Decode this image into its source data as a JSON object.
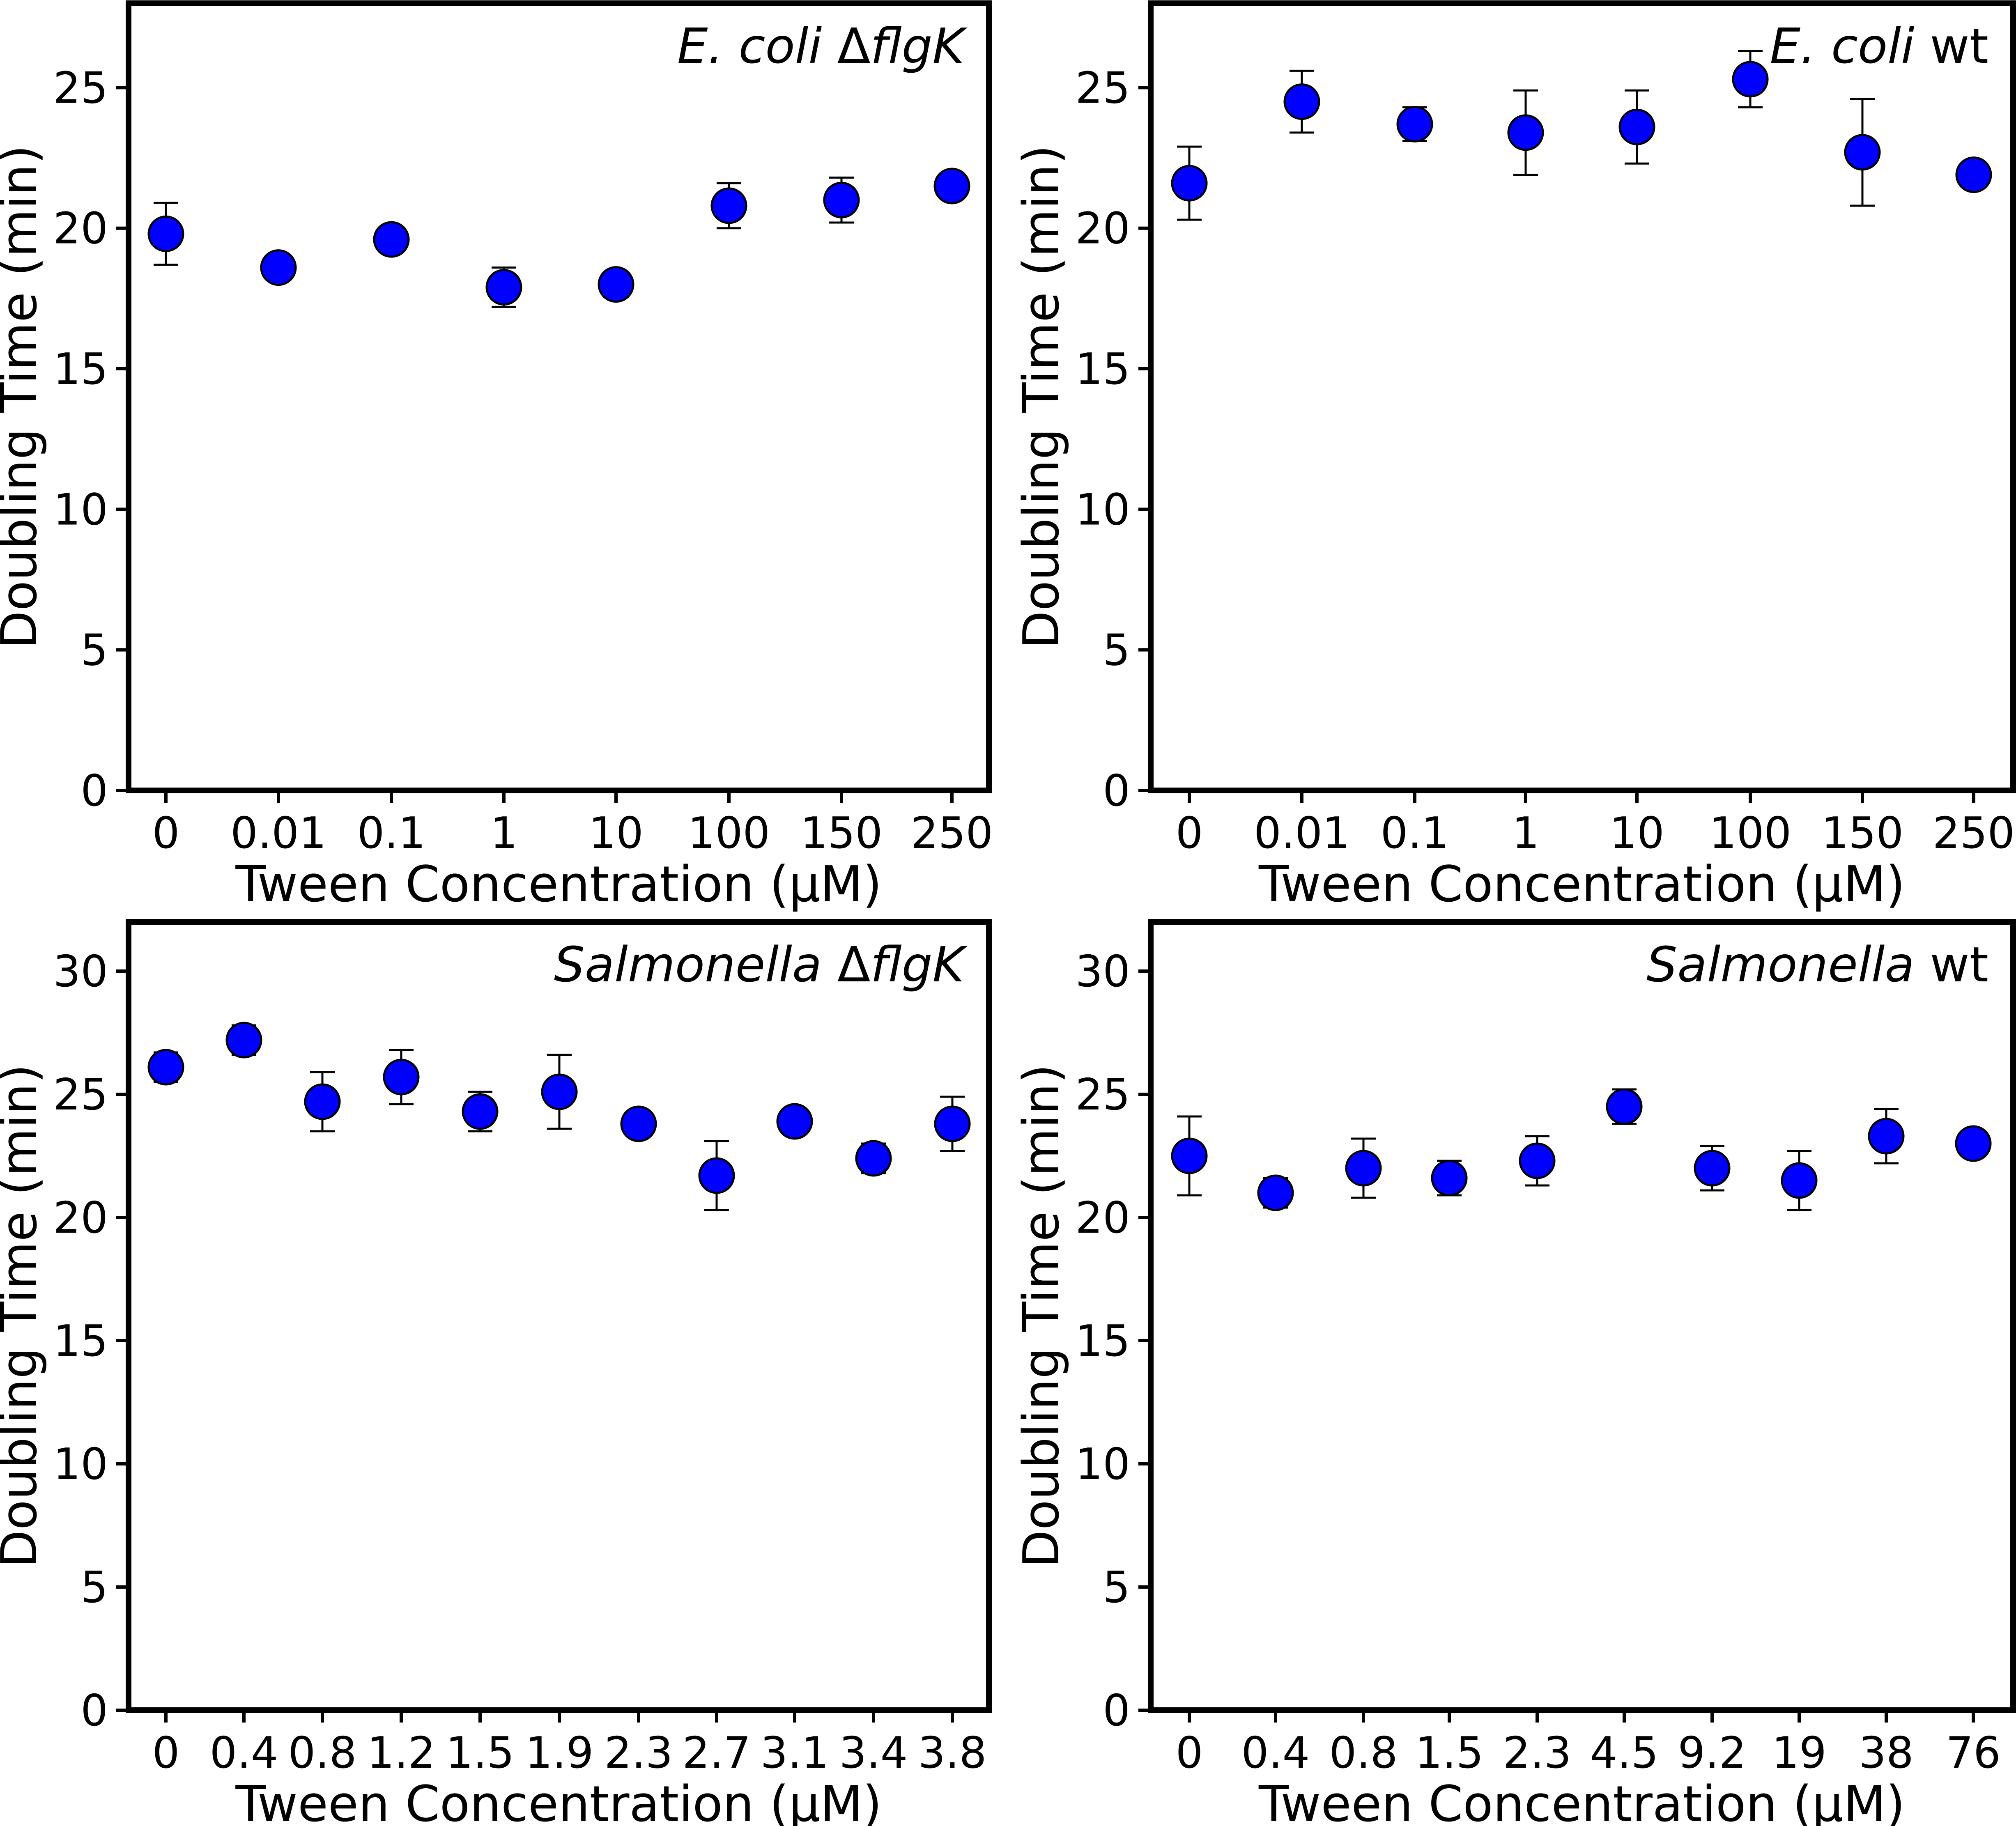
{
  "chart_data": [
    {
      "type": "scatter",
      "title_parts": [
        {
          "text": "E. coli ",
          "italic": true
        },
        {
          "text": "Δ",
          "italic": false
        },
        {
          "text": "flgK",
          "italic": true
        }
      ],
      "xlabel": "Tween Concentration (μM)",
      "ylabel": "Doubling Time (min)",
      "categories": [
        "0",
        "0.01",
        "0.1",
        "1",
        "10",
        "100",
        "150",
        "250"
      ],
      "values": [
        19.8,
        18.6,
        19.6,
        17.9,
        18.0,
        20.8,
        21.0,
        21.5
      ],
      "errors": [
        1.1,
        0.0,
        0.0,
        0.7,
        0.0,
        0.8,
        0.8,
        0.0
      ],
      "ylim": [
        0,
        28
      ],
      "yticks": [
        0,
        5,
        10,
        15,
        20,
        25
      ],
      "marker_color": "#0000ff",
      "grid": false,
      "legend": "none"
    },
    {
      "type": "scatter",
      "title_parts": [
        {
          "text": "E. coli",
          "italic": true
        },
        {
          "text": " wt",
          "italic": false
        }
      ],
      "xlabel": "Tween Concentration (μM)",
      "ylabel": "Doubling Time (min)",
      "categories": [
        "0",
        "0.01",
        "0.1",
        "1",
        "10",
        "100",
        "150",
        "250"
      ],
      "values": [
        21.6,
        24.5,
        23.7,
        23.4,
        23.6,
        25.3,
        22.7,
        21.9
      ],
      "errors": [
        1.3,
        1.1,
        0.6,
        1.5,
        1.3,
        1.0,
        1.9,
        0.0
      ],
      "ylim": [
        0,
        28
      ],
      "yticks": [
        0,
        5,
        10,
        15,
        20,
        25
      ],
      "marker_color": "#0000ff",
      "grid": false,
      "legend": "none"
    },
    {
      "type": "scatter",
      "title_parts": [
        {
          "text": "Salmonella ",
          "italic": true
        },
        {
          "text": "Δ",
          "italic": false
        },
        {
          "text": "flgK",
          "italic": true
        }
      ],
      "xlabel": "Tween Concentration (μM)",
      "ylabel": "Doubling Time (min)",
      "categories": [
        "0",
        "0.4",
        "0.8",
        "1.2",
        "1.5",
        "1.9",
        "2.3",
        "2.7",
        "3.1",
        "3.4",
        "3.8"
      ],
      "values": [
        26.1,
        27.2,
        24.7,
        25.7,
        24.3,
        25.1,
        23.8,
        21.7,
        23.9,
        22.4,
        23.8
      ],
      "errors": [
        0.6,
        0.6,
        1.2,
        1.1,
        0.8,
        1.5,
        0.0,
        1.4,
        0.0,
        0.6,
        1.1
      ],
      "ylim": [
        0,
        32
      ],
      "yticks": [
        0,
        5,
        10,
        15,
        20,
        25,
        30
      ],
      "marker_color": "#0000ff",
      "grid": false,
      "legend": "none"
    },
    {
      "type": "scatter",
      "title_parts": [
        {
          "text": "Salmonella",
          "italic": true
        },
        {
          "text": " wt",
          "italic": false
        }
      ],
      "xlabel": "Tween Concentration (μM)",
      "ylabel": "Doubling Time (min)",
      "categories": [
        "0",
        "0.4",
        "0.8",
        "1.5",
        "2.3",
        "4.5",
        "9.2",
        "19",
        "38",
        "76"
      ],
      "values": [
        22.5,
        21.0,
        22.0,
        21.6,
        22.3,
        24.5,
        22.0,
        21.5,
        23.3,
        23.0
      ],
      "errors": [
        1.6,
        0.6,
        1.2,
        0.7,
        1.0,
        0.7,
        0.9,
        1.2,
        1.1,
        0.0
      ],
      "ylim": [
        0,
        32
      ],
      "yticks": [
        0,
        5,
        10,
        15,
        20,
        25,
        30
      ],
      "marker_color": "#0000ff",
      "grid": false,
      "legend": "none"
    }
  ]
}
